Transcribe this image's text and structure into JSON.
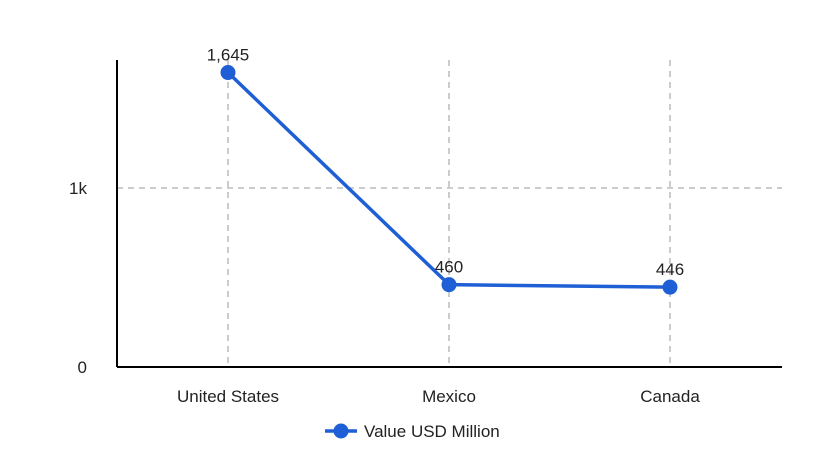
{
  "chart_data": {
    "type": "line",
    "categories": [
      "United States",
      "Mexico",
      "Canada"
    ],
    "series": [
      {
        "name": "Value USD Million",
        "values": [
          1645,
          460,
          446
        ],
        "color": "#1f5fd6"
      }
    ],
    "data_labels": [
      "1,645",
      "460",
      "446"
    ],
    "y_ticks": [
      {
        "value": 0,
        "label": "0"
      },
      {
        "value": 1000,
        "label": "1k"
      }
    ],
    "ylim": [
      0,
      1700
    ],
    "grid": true,
    "grid_color": "#bbbbbb",
    "axis_color": "#000000",
    "legend_position": "bottom"
  }
}
